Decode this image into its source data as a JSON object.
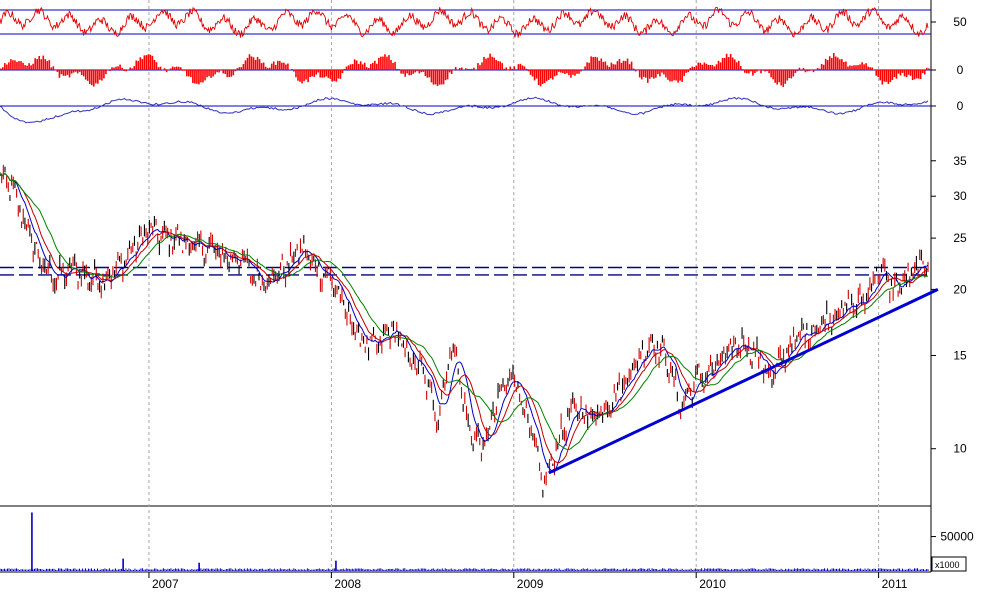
{
  "chart_data": [
    {
      "panel": "oscillator-1",
      "type": "line",
      "color": "#e00000",
      "y_ticks": [
        "50"
      ],
      "reference_levels": [
        30,
        70
      ],
      "ylim": [
        20,
        80
      ]
    },
    {
      "panel": "oscillator-2",
      "type": "bar",
      "color": "#ff0000",
      "y_ticks": [
        "0"
      ],
      "ylim": [
        -1,
        1
      ]
    },
    {
      "panel": "oscillator-3",
      "type": "line",
      "color": "#3030c0",
      "y_ticks": [
        "0"
      ],
      "ylim": [
        -1,
        1
      ]
    },
    {
      "panel": "price",
      "type": "line",
      "scale": "log",
      "ylim": [
        8,
        37
      ],
      "y_ticks": [
        "35",
        "30",
        "25",
        "20",
        "15",
        "10"
      ],
      "x_labels": [
        "2007",
        "2008",
        "2009",
        "2010",
        "2011"
      ],
      "x_range": [
        "2006-03",
        "2011-04"
      ],
      "grid": "vertical dotted at year starts",
      "series": [
        {
          "role": "price",
          "color": "#c00000",
          "x": [
            "2006-03",
            "2006-04",
            "2006-05",
            "2006-06",
            "2006-07",
            "2006-08",
            "2006-09",
            "2006-10",
            "2006-11",
            "2006-12",
            "2007-01",
            "2007-02",
            "2007-03",
            "2007-04",
            "2007-05",
            "2007-06",
            "2007-07",
            "2007-08",
            "2007-09",
            "2007-10",
            "2007-11",
            "2007-12",
            "2008-01",
            "2008-02",
            "2008-03",
            "2008-04",
            "2008-05",
            "2008-06",
            "2008-07",
            "2008-08",
            "2008-09",
            "2008-10",
            "2008-11",
            "2008-12",
            "2009-01",
            "2009-02",
            "2009-03",
            "2009-04",
            "2009-05",
            "2009-06",
            "2009-07",
            "2009-08",
            "2009-09",
            "2009-10",
            "2009-11",
            "2009-12",
            "2010-01",
            "2010-02",
            "2010-03",
            "2010-04",
            "2010-05",
            "2010-06",
            "2010-07",
            "2010-08",
            "2010-09",
            "2010-10",
            "2010-11",
            "2010-12",
            "2011-01",
            "2011-02",
            "2011-03",
            "2011-04"
          ],
          "values": [
            33,
            31,
            26,
            22,
            21,
            22,
            21,
            21,
            22,
            24,
            26,
            25,
            25,
            24,
            24,
            23,
            23,
            21,
            21,
            22,
            24,
            22,
            21,
            18,
            16,
            15.5,
            17,
            15,
            14,
            11.5,
            16,
            11,
            10,
            12.5,
            14,
            11,
            8.5,
            10.5,
            12,
            11.5,
            12,
            13,
            14.5,
            16,
            15,
            12,
            13.5,
            14,
            15,
            16,
            15,
            13.5,
            15.5,
            16.5,
            17,
            18,
            18.5,
            19,
            22,
            20,
            21,
            22.5
          ]
        },
        {
          "role": "moving-average-short",
          "color": "#0000c0"
        },
        {
          "role": "moving-average-medium",
          "color": "#c00000"
        },
        {
          "role": "moving-average-long",
          "color": "#008000"
        }
      ],
      "annotations": {
        "trendline": {
          "color": "#0000d0",
          "from": [
            "2009-03",
            9.0
          ],
          "to": [
            "2011-04",
            20.0
          ]
        },
        "horizontal_dashed_levels": [
          22.0,
          21.3
        ],
        "dashed_color": "#000080"
      }
    },
    {
      "panel": "volume",
      "type": "bar",
      "color": "#0000c0",
      "y_ticks": [
        "50000"
      ],
      "multiplier_label": "x1000",
      "spikes": [
        {
          "x": "2006-05",
          "value": 85000
        },
        {
          "x": "2006-11",
          "value": 18000
        },
        {
          "x": "2007-04",
          "value": 12000
        },
        {
          "x": "2008-01",
          "value": 15000
        }
      ],
      "ylim": [
        0,
        90000
      ]
    }
  ]
}
